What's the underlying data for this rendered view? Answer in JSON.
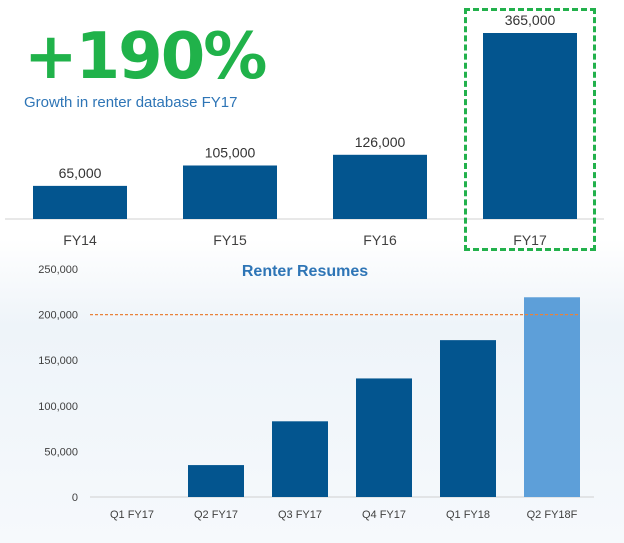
{
  "headline": {
    "value": "+190%",
    "caption": "Growth in renter database FY17"
  },
  "colors": {
    "growth": "#20b24a",
    "bar": "#03558f",
    "forecast_bar": "#5d9fd9",
    "caption": "#2e75b6",
    "threshold": "#e9823b"
  },
  "chart_data": [
    {
      "type": "bar",
      "title": "",
      "categories": [
        "FY14",
        "FY15",
        "FY16",
        "FY17"
      ],
      "values": [
        65000,
        105000,
        126000,
        365000
      ],
      "value_labels": [
        "65,000",
        "105,000",
        "126,000",
        "365,000"
      ],
      "highlight_category": "FY17",
      "xlabel": "",
      "ylabel": ""
    },
    {
      "type": "bar",
      "title": "Renter Resumes",
      "categories": [
        "Q1 FY17",
        "Q2 FY17",
        "Q3 FY17",
        "Q4 FY17",
        "Q1 FY18",
        "Q2 FY18F"
      ],
      "values": [
        0,
        35000,
        83000,
        130000,
        172000,
        219000
      ],
      "forecast_category": "Q2 FY18F",
      "y_ticks": [
        0,
        50000,
        100000,
        150000,
        200000,
        250000
      ],
      "y_tick_labels": [
        "0",
        "50,000",
        "100,000",
        "150,000",
        "200,000",
        "250,000"
      ],
      "ylim": [
        0,
        250000
      ],
      "reference_line": 200000,
      "grid": false,
      "xlabel": "",
      "ylabel": ""
    }
  ]
}
